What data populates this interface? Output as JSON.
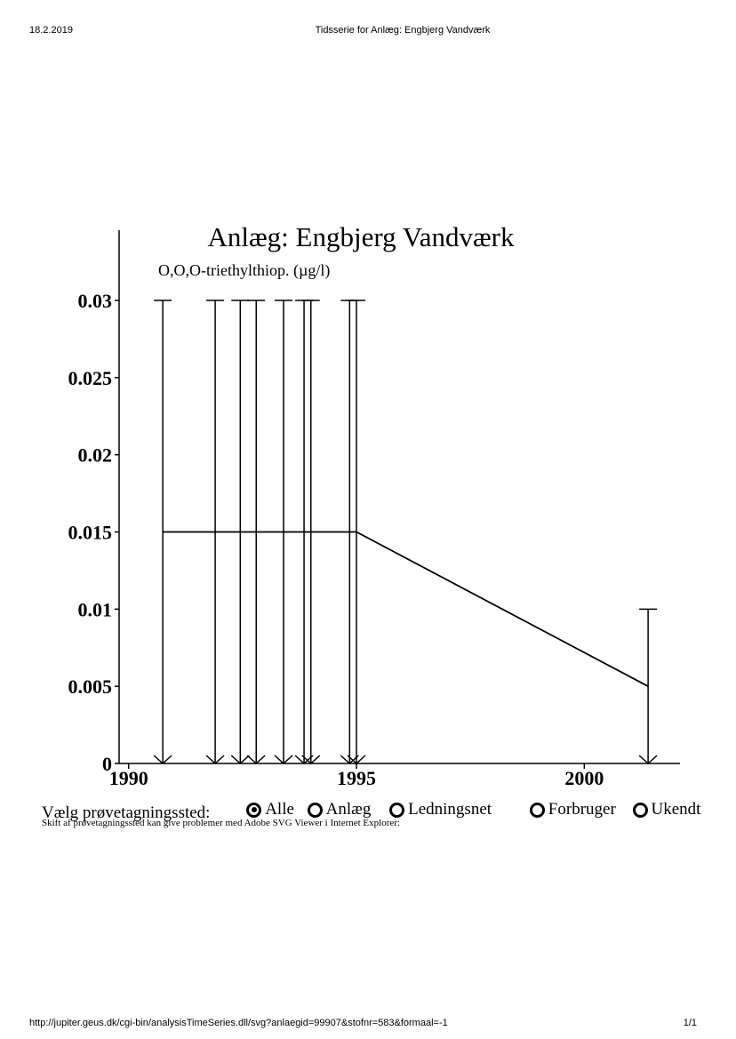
{
  "print_header": {
    "date": "18.2.2019",
    "title": "Tidsserie for Anlæg: Engbjerg Vandværk"
  },
  "print_footer": {
    "url": "http://jupiter.geus.dk/cgi-bin/analysisTimeSeries.dll/svg?anlaegid=99907&stofnr=583&formaal=-1",
    "page": "1/1"
  },
  "selector": {
    "label": "Vælg prøvetagningssted:",
    "options": [
      "Alle",
      "Anlæg",
      "Ledningsnet",
      "Forbruger",
      "Ukendt"
    ],
    "selected": "Alle",
    "note": "Skift af prøvetagningssted kan give problemer med Adobe SVG Viewer i Internet Explorer:"
  },
  "chart_data": {
    "type": "line",
    "title": "Anlæg: Engbjerg Vandværk",
    "ylabel": "O,O,O-triethylthiop. (µg/l)",
    "xlabel": "",
    "xlim": [
      1989.85,
      2002.1
    ],
    "ylim": [
      0,
      0.03
    ],
    "x_ticks": [
      "1990",
      "1995",
      "2000"
    ],
    "y_ticks": [
      "0",
      "0.005",
      "0.01",
      "0.015",
      "0.02",
      "0.025",
      "0.03"
    ],
    "grid": false,
    "series": [
      {
        "x": [
          1990.75,
          1995.0,
          2001.4
        ],
        "y": [
          0.015,
          0.015,
          0.005
        ]
      }
    ],
    "range_bars": [
      {
        "x": 1990.75,
        "high": 0.03,
        "low": 0
      },
      {
        "x": 1991.9,
        "high": 0.03,
        "low": 0
      },
      {
        "x": 1992.45,
        "high": 0.03,
        "low": 0
      },
      {
        "x": 1992.8,
        "high": 0.03,
        "low": 0
      },
      {
        "x": 1993.4,
        "high": 0.03,
        "low": 0
      },
      {
        "x": 1993.85,
        "high": 0.03,
        "low": 0
      },
      {
        "x": 1994.0,
        "high": 0.03,
        "low": 0
      },
      {
        "x": 1994.85,
        "high": 0.03,
        "low": 0
      },
      {
        "x": 1995.0,
        "high": 0.03,
        "low": 0
      },
      {
        "x": 2001.4,
        "high": 0.01,
        "low": 0
      }
    ],
    "colors": {
      "axis": "#000000",
      "line": "#000000"
    }
  }
}
